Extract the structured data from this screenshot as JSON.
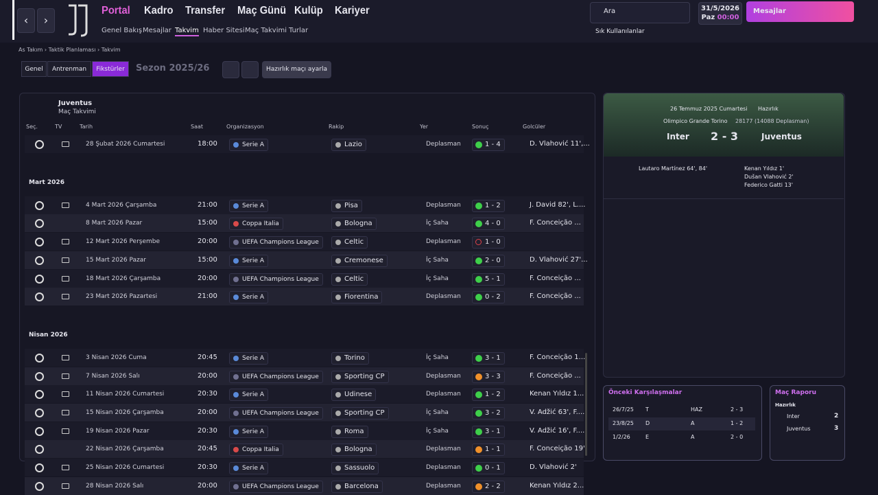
{
  "nav": {
    "menu": [
      "Portal",
      "Kadro",
      "Transfer",
      "Maç Günü",
      "Kulüp",
      "Kariyer"
    ],
    "submenu": [
      "Genel Bakış",
      "Mesajlar",
      "Takvim",
      "Haber Sitesi",
      "Maç Takvimi",
      "Turlar"
    ],
    "search": "Ara",
    "date": "31/5/2026",
    "weekday": "Paz",
    "time": "00:00",
    "messages": "Mesajlar",
    "favorites": "Sık Kullanılanlar"
  },
  "breadcrumb": [
    "As Takım",
    "Taktik Planlaması",
    "Takvim"
  ],
  "tabs": [
    "Genel",
    "Antrenman",
    "Fikstürler"
  ],
  "season": "Sezon 2025/26",
  "friendly_button": "Hazırlık maçı ayarla",
  "fixtures": {
    "team": "Juventus",
    "subtitle": "Maç Takvimi",
    "columns": [
      "Seç.",
      "TV",
      "Tarih",
      "Saat",
      "Organizasyon",
      "Rakip",
      "Yer",
      "Sonuç",
      "Golcüler"
    ],
    "groups": [
      {
        "rows": [
          {
            "date": "28 Şubat 2026 Cumartesi",
            "time": "18:00",
            "competition": "Serie A",
            "opponent": "Lazio",
            "venue": "Deplasman",
            "result": "1 - 4",
            "result_color": "#3ecf4a",
            "scorers": "D. Vlahović 11',...",
            "tv": true
          }
        ]
      },
      {
        "month": "Mart 2026",
        "rows": [
          {
            "date": "4 Mart 2026 Çarşamba",
            "time": "21:00",
            "competition": "Serie A",
            "opponent": "Pisa",
            "venue": "Deplasman",
            "result": "1 - 2",
            "result_color": "#3ecf4a",
            "scorers": "J. David 82', L....",
            "tv": true
          },
          {
            "date": "8 Mart 2026 Pazar",
            "time": "15:00",
            "competition": "Coppa Italia",
            "opponent": "Bologna",
            "venue": "İç Saha",
            "result": "4 - 0",
            "result_color": "#3ecf4a",
            "scorers": "F. Conceição ...",
            "tv": false
          },
          {
            "date": "12 Mart 2026 Perşembe",
            "time": "20:00",
            "competition": "UEFA Champions League",
            "opponent": "Celtic",
            "venue": "Deplasman",
            "result": "1 - 0",
            "result_color": "#e0404a",
            "scorers": "",
            "tv": true
          },
          {
            "date": "15 Mart 2026 Pazar",
            "time": "15:00",
            "competition": "Serie A",
            "opponent": "Cremonese",
            "venue": "İç Saha",
            "result": "2 - 0",
            "result_color": "#3ecf4a",
            "scorers": "D. Vlahović 27'...",
            "tv": true
          },
          {
            "date": "18 Mart 2026 Çarşamba",
            "time": "20:00",
            "competition": "UEFA Champions League",
            "opponent": "Celtic",
            "venue": "İç Saha",
            "result": "5 - 1",
            "result_color": "#3ecf4a",
            "scorers": "F. Conceição ...",
            "tv": true
          },
          {
            "date": "23 Mart 2026 Pazartesi",
            "time": "21:00",
            "competition": "Serie A",
            "opponent": "Fiorentina",
            "venue": "Deplasman",
            "result": "0 - 2",
            "result_color": "#3ecf4a",
            "scorers": "F. Conceição ...",
            "tv": true
          }
        ]
      },
      {
        "month": "Nisan 2026",
        "rows": [
          {
            "date": "3 Nisan 2026 Cuma",
            "time": "20:45",
            "competition": "Serie A",
            "opponent": "Torino",
            "venue": "İç Saha",
            "result": "3 - 1",
            "result_color": "#3ecf4a",
            "scorers": "F. Conceição 1...",
            "tv": true
          },
          {
            "date": "7 Nisan 2026 Salı",
            "time": "20:00",
            "competition": "UEFA Champions League",
            "opponent": "Sporting CP",
            "venue": "Deplasman",
            "result": "3 - 3",
            "result_color": "#f0902a",
            "scorers": "F. Conceição ...",
            "tv": true
          },
          {
            "date": "11 Nisan 2026 Cumartesi",
            "time": "20:30",
            "competition": "Serie A",
            "opponent": "Udinese",
            "venue": "Deplasman",
            "result": "1 - 2",
            "result_color": "#3ecf4a",
            "scorers": "Kenan Yıldız 1...",
            "tv": true
          },
          {
            "date": "15 Nisan 2026 Çarşamba",
            "time": "20:00",
            "competition": "UEFA Champions League",
            "opponent": "Sporting CP",
            "venue": "İç Saha",
            "result": "3 - 2",
            "result_color": "#3ecf4a",
            "scorers": "V. Adžić 63', F....",
            "tv": true
          },
          {
            "date": "19 Nisan 2026 Pazar",
            "time": "20:30",
            "competition": "Serie A",
            "opponent": "Roma",
            "venue": "İç Saha",
            "result": "3 - 1",
            "result_color": "#3ecf4a",
            "scorers": "V. Adžić 16', F....",
            "tv": true
          },
          {
            "date": "22 Nisan 2026 Çarşamba",
            "time": "20:45",
            "competition": "Coppa Italia",
            "opponent": "Bologna",
            "venue": "Deplasman",
            "result": "1 - 1",
            "result_color": "#f0902a",
            "scorers": "F. Conceição 19'",
            "tv": false
          },
          {
            "date": "25 Nisan 2026 Cumartesi",
            "time": "20:30",
            "competition": "Serie A",
            "opponent": "Sassuolo",
            "venue": "Deplasman",
            "result": "0 - 1",
            "result_color": "#3ecf4a",
            "scorers": "D. Vlahović 2'",
            "tv": true
          },
          {
            "date": "28 Nisan 2026 Salı",
            "time": "20:00",
            "competition": "UEFA Champions League",
            "opponent": "Barcelona",
            "venue": "Deplasman",
            "result": "2 - 2",
            "result_color": "#f0902a",
            "scorers": "Kenan Yıldız 2...",
            "tv": true
          }
        ]
      }
    ]
  },
  "match": {
    "date": "26 Temmuz 2025 Cumartesi",
    "competition": "Hazırlık",
    "stadium": "Olimpico Grande Torino",
    "attendance": "28177 (14088 Deplasman)",
    "home": "Inter",
    "score": "2 - 3",
    "away": "Juventus",
    "home_scorers": [
      "Lautaro Martínez 64', 84'"
    ],
    "away_scorers": [
      "Kenan Yıldız 1'",
      "Dušan Vlahović 2'",
      "Federico Gatti 13'"
    ]
  },
  "previous": {
    "title": "Önceki Karşılaşmalar",
    "rows": [
      [
        "26/7/25",
        "T",
        "HAZ",
        "2 - 3"
      ],
      [
        "23/8/25",
        "D",
        "A",
        "1 - 2"
      ],
      [
        "1/2/26",
        "E",
        "A",
        "2 - 0"
      ]
    ]
  },
  "report": {
    "title": "Maç Raporu",
    "subtitle": "Hazırlık",
    "rows": [
      [
        "Inter",
        "2"
      ],
      [
        "Juventus",
        "3"
      ]
    ]
  }
}
